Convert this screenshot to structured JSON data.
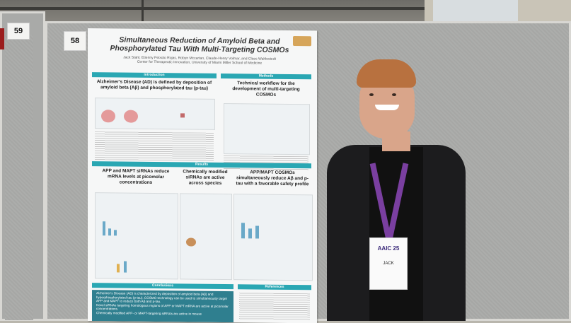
{
  "scene": {
    "description_icon": "photo-icon"
  },
  "booths": {
    "left_number": "59",
    "right_number": "58"
  },
  "poster": {
    "title": "Simultaneous Reduction of Amyloid Beta and Phosphorylated Tau With Multi-Targeting COSMOs",
    "authors": "Jack Stahl, Etienny Peixoto Rojas, Robyn Mccartan, Claude-Henry Volmar, and Claes Wahlestedt",
    "affiliation": "Center for Therapeutic Innovation, University of Miami Miller School of Medicine",
    "sections": {
      "introduction": "Introduction",
      "methods": "Methods",
      "results": "Results",
      "conclusions": "Conclusions",
      "references": "References"
    },
    "intro_heading": "Alzheimer's Disease (AD) is defined by deposition of amyloid beta (Aβ) and phosphorylated tau (p-tau)",
    "methods_heading": "Technical workflow for the development of multi-targeting COSMOs",
    "results_col1": "APP and MAPT siRNAs reduce mRNA levels at picomolar concentrations",
    "results_col2": "Chemically modified siRNAs are active across species",
    "results_col3": "APP/MAPT COSMOs simultaneously reduce Aβ and p-tau with a favorable safety profile",
    "conclusion_1": "Alzheimer's Disease (AD) is characterized by deposition of amyloid beta (Aβ) and hyperphosphorylated tau (p-tau). COSMO technology can be used to simultaneously target APP and MAPT to reduce both Aβ and p-tau.",
    "conclusion_2": "Novel siRNAs targeting homologous regions of APP or MAPT mRNA are active at picomolar concentrations.",
    "conclusion_3": "Chemically modified APP- or MAPT-targeting siRNAs are active in mouse"
  },
  "badge": {
    "event": "AAIC 25",
    "name": "JACK"
  },
  "colors": {
    "poster_accent": "#2aa7b3",
    "panel": "#a9aaa8",
    "suit": "#1c1c1e",
    "lanyard": "#7a3fa0"
  }
}
